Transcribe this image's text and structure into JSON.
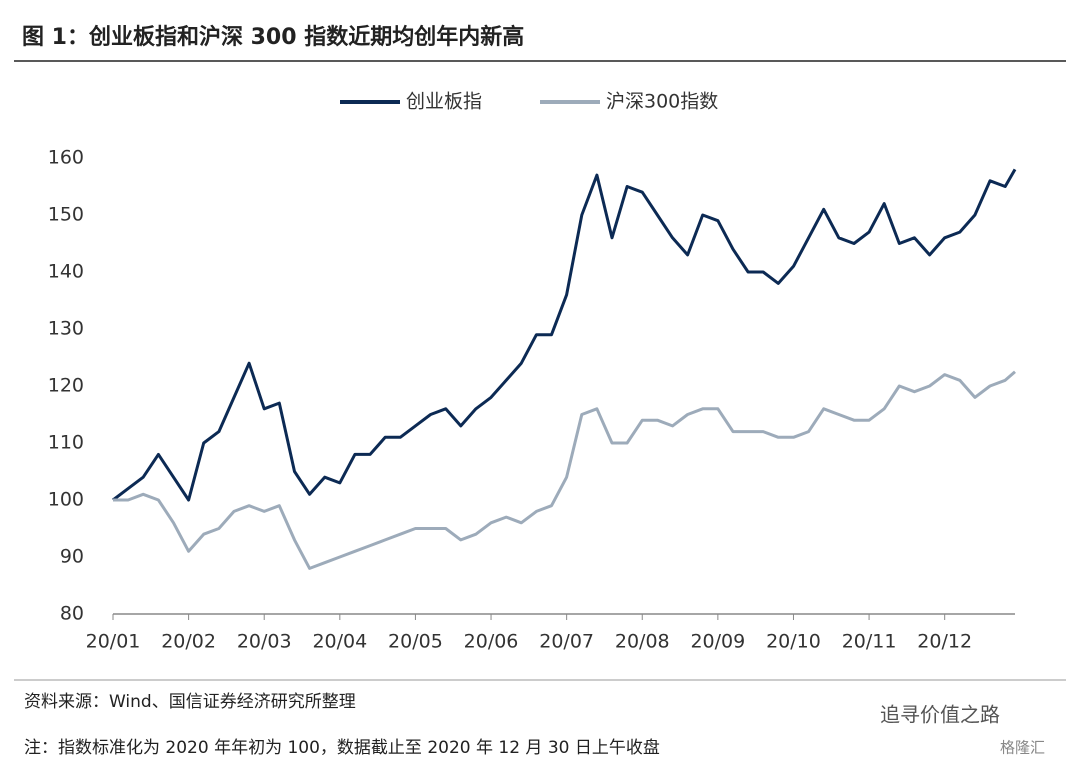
{
  "chart_data": {
    "type": "line",
    "title": "图 1：创业板指和沪深 300 指数近期均创年内新高",
    "x": [
      0,
      0.2,
      0.4,
      0.6,
      0.8,
      1,
      1.2,
      1.4,
      1.6,
      1.8,
      2,
      2.2,
      2.4,
      2.6,
      2.8,
      3,
      3.2,
      3.4,
      3.6,
      3.8,
      4,
      4.2,
      4.4,
      4.6,
      4.8,
      5,
      5.2,
      5.4,
      5.6,
      5.8,
      6,
      6.2,
      6.4,
      6.6,
      6.8,
      7,
      7.2,
      7.4,
      7.6,
      7.8,
      8,
      8.2,
      8.4,
      8.6,
      8.8,
      9,
      9.2,
      9.4,
      9.6,
      9.8,
      10,
      10.2,
      10.4,
      10.6,
      10.8,
      11,
      11.2,
      11.4,
      11.6,
      11.8,
      11.93
    ],
    "series": [
      {
        "name": "创业板指",
        "color": "#0c2a54",
        "values": [
          100,
          102,
          104,
          108,
          104,
          100,
          110,
          112,
          118,
          124,
          116,
          117,
          105,
          101,
          104,
          103,
          108,
          108,
          111,
          111,
          113,
          115,
          116,
          113,
          116,
          118,
          121,
          124,
          129,
          129,
          136,
          150,
          157,
          146,
          155,
          154,
          150,
          146,
          143,
          150,
          149,
          144,
          140,
          140,
          138,
          141,
          146,
          151,
          146,
          145,
          147,
          152,
          145,
          146,
          143,
          146,
          147,
          150,
          156,
          155,
          158
        ]
      },
      {
        "name": "沪深300指数",
        "color": "#9dabba",
        "values": [
          100,
          100,
          101,
          100,
          96,
          91,
          94,
          95,
          98,
          99,
          98,
          99,
          93,
          88,
          89,
          90,
          91,
          92,
          93,
          94,
          95,
          95,
          95,
          93,
          94,
          96,
          97,
          96,
          98,
          99,
          104,
          115,
          116,
          110,
          110,
          114,
          114,
          113,
          115,
          116,
          116,
          112,
          112,
          112,
          111,
          111,
          112,
          116,
          115,
          114,
          114,
          116,
          120,
          119,
          120,
          122,
          121,
          118,
          120,
          121,
          122.5
        ]
      }
    ],
    "xlim": [
      0,
      11.93
    ],
    "xticks": [
      {
        "value": 0,
        "label": "20/01"
      },
      {
        "value": 1,
        "label": "20/02"
      },
      {
        "value": 2,
        "label": "20/03"
      },
      {
        "value": 3,
        "label": "20/04"
      },
      {
        "value": 4,
        "label": "20/05"
      },
      {
        "value": 5,
        "label": "20/06"
      },
      {
        "value": 6,
        "label": "20/07"
      },
      {
        "value": 7,
        "label": "20/08"
      },
      {
        "value": 8,
        "label": "20/09"
      },
      {
        "value": 9,
        "label": "20/10"
      },
      {
        "value": 10,
        "label": "20/11"
      },
      {
        "value": 11,
        "label": "20/12"
      }
    ],
    "ylim": [
      80,
      160
    ],
    "yticks": [
      80,
      90,
      100,
      110,
      120,
      130,
      140,
      150,
      160
    ],
    "legend": "top",
    "source": "资料来源：Wind、国信证券经济研究所整理",
    "note": "注：指数标准化为 2020 年年初为 100，数据截止至 2020 年 12 月 30 日上午收盘",
    "watermark": [
      "追寻价值之路",
      "格隆汇"
    ]
  }
}
